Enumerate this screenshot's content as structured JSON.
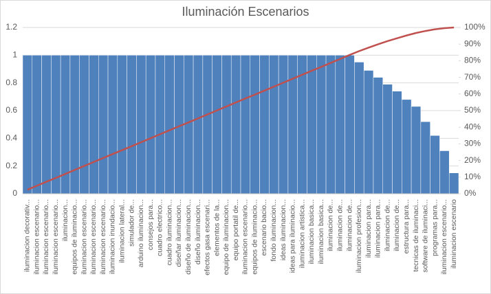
{
  "chart_data": {
    "type": "pareto",
    "title": "Iluminación Escenarios",
    "categories": [
      "iluminacion decorativ...",
      "iluminacion escenario...",
      "iluminacion escenario...",
      "iluminacion escenario...",
      "iluminacion...",
      "equipos de iluminacio...",
      "iluminacion escenario...",
      "iluminacion escenario...",
      "iluminacion escenario...",
      "iluminacion inundacio...",
      "iluminacion lateral...",
      "simulador de...",
      "arduino iluminacion...",
      "consejos para...",
      "cuadro electrico...",
      "cuadro iluminacion...",
      "diseñar iluminacion...",
      "diseño de iluminacion...",
      "diseño iluminacion...",
      "efectos gasa escenari...",
      "elementos de la...",
      "equipo de iluminacion...",
      "equipo portatil de...",
      "iluminacion escenario...",
      "equipos de iluminacio...",
      "escenario bacio...",
      "fondo iluminacion...",
      "ideas iluminacion...",
      "ideas para iluminacio...",
      "iluminacion artistica...",
      "iluminacion basica...",
      "iluminacion basica...",
      "iluminacion de...",
      "iluminacion de...",
      "iluminacion de...",
      "iluminacion profesion...",
      "iluminacion para...",
      "iluminacion para...",
      "iluminacion de...",
      "iluminacion de...",
      "estructura para...",
      "tecnicas de iluminaci...",
      "software de iluminaci...",
      "programas para...",
      "iluminacion escenario...",
      "iluminacion escenario"
    ],
    "series": [
      {
        "color": "#4f81bd",
        "values": [
          1,
          1,
          1,
          1,
          1,
          1,
          1,
          1,
          1,
          1,
          1,
          1,
          1,
          1,
          1,
          1,
          1,
          1,
          1,
          1,
          1,
          1,
          1,
          1,
          1,
          1,
          1,
          1,
          1,
          1,
          1,
          1,
          1,
          1,
          1,
          0.95,
          0.89,
          0.84,
          0.79,
          0.74,
          0.68,
          0.63,
          0.52,
          0.42,
          0.31,
          0.15
        ]
      },
      {
        "color": "#c0504d",
        "axis": "y2",
        "values": [
          2.4,
          4.8,
          7.2,
          9.5,
          11.9,
          14.3,
          16.7,
          19.1,
          21.5,
          23.9,
          26.2,
          28.6,
          31.0,
          33.4,
          35.8,
          38.2,
          40.6,
          42.9,
          45.3,
          47.7,
          50.1,
          52.5,
          54.9,
          57.3,
          59.6,
          62.0,
          64.4,
          66.8,
          69.2,
          71.6,
          74.0,
          76.3,
          78.7,
          81.1,
          83.5,
          85.8,
          87.9,
          89.9,
          91.8,
          93.5,
          95.2,
          96.7,
          97.9,
          98.9,
          99.6,
          100
        ]
      }
    ],
    "ylim": [
      0,
      1.2
    ],
    "yticks": [
      0,
      0.2,
      0.4,
      0.6,
      0.8,
      1,
      1.2
    ],
    "y2lim": [
      0,
      100
    ],
    "y2ticks": [
      {
        "value": 0,
        "label": "0%"
      },
      {
        "value": 10,
        "label": "10%"
      },
      {
        "value": 20,
        "label": "20%"
      },
      {
        "value": 30,
        "label": "30%"
      },
      {
        "value": 40,
        "label": "40%"
      },
      {
        "value": 50,
        "label": "50%"
      },
      {
        "value": 60,
        "label": "60%"
      },
      {
        "value": 70,
        "label": "70%"
      },
      {
        "value": 80,
        "label": "80%"
      },
      {
        "value": 90,
        "label": "90%"
      },
      {
        "value": 100,
        "label": "100%"
      }
    ],
    "grid": true
  }
}
